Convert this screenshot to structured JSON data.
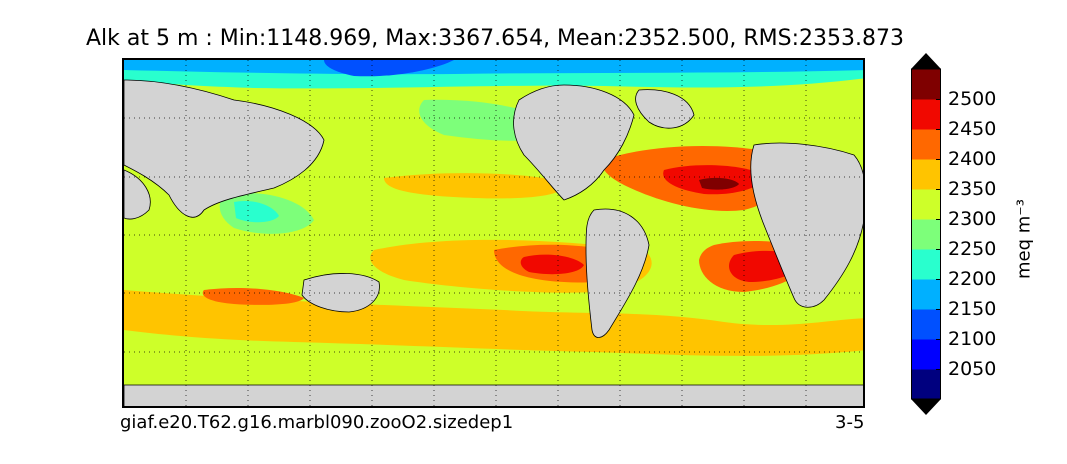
{
  "figure": {
    "title": "Alk at 5 m : Min:1148.969, Max:3367.654, Mean:2352.500, RMS:2353.873",
    "caption_left": "giaf.e20.T62.g16.marbl090.zooO2.sizedep1",
    "caption_right": "3-5"
  },
  "colorbar": {
    "units_label": "meq m⁻³",
    "levels": [
      2050,
      2100,
      2150,
      2200,
      2250,
      2300,
      2350,
      2400,
      2450,
      2500
    ],
    "tick_labels": [
      "2050",
      "2100",
      "2150",
      "2200",
      "2250",
      "2300",
      "2350",
      "2400",
      "2450",
      "2500"
    ],
    "colors": [
      "#00007f",
      "#0000ff",
      "#0050ff",
      "#00b0ff",
      "#29ffce",
      "#7dff7a",
      "#ceff29",
      "#ffc400",
      "#ff6800",
      "#f10800",
      "#7f0000"
    ],
    "extend": "both"
  },
  "map": {
    "projection": "global cylindrical, Pacific-centered",
    "land_color": "#d3d3d3",
    "grid": true,
    "dominant_value_range": "2300-2350"
  }
}
